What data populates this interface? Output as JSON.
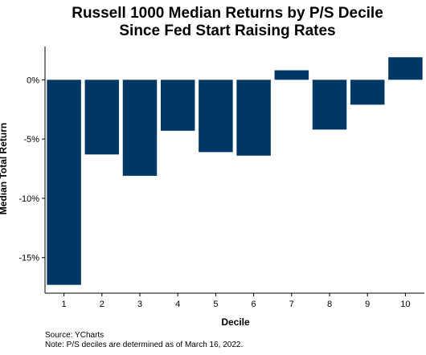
{
  "chart_data": {
    "type": "bar",
    "title": "Russell 1000 Median Returns by P/S Decile",
    "subtitle": "Since Fed Start Raising Rates",
    "xlabel": "Decile",
    "ylabel": "Median Total Return",
    "categories": [
      "1",
      "2",
      "3",
      "4",
      "5",
      "6",
      "7",
      "8",
      "9",
      "10"
    ],
    "values": [
      -17.3,
      -6.3,
      -8.1,
      -4.3,
      -6.1,
      -6.4,
      0.8,
      -4.2,
      -2.1,
      1.9
    ],
    "ylim": [
      -18,
      2.8
    ],
    "yticks": [
      0,
      -5,
      -10,
      -15
    ],
    "ytick_labels": [
      "0%",
      "-5%",
      "-10%",
      "-15%"
    ],
    "grid": false,
    "bar_color": "#003865",
    "source": "Source: YCharts",
    "note": "Note: P/S deciles are determined as of March 16, 2022."
  }
}
